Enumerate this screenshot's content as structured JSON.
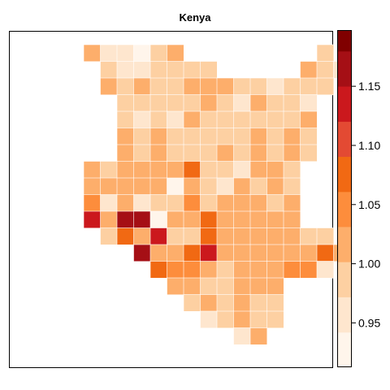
{
  "map": {
    "title": "Kenya"
  },
  "colorbar": {
    "min": 0.9125,
    "max": 1.1975,
    "breaks": [
      0.9125,
      0.9421,
      0.9719,
      1.0016,
      1.0313,
      1.0609,
      1.0906,
      1.1203,
      1.15,
      1.1797,
      1.1975
    ],
    "colors": [
      "#FFF5EB",
      "#FEE6CE",
      "#FDD0A2",
      "#FDAE6B",
      "#FD8D3C",
      "#F16913",
      "#E34A33",
      "#CB181D",
      "#A50F15",
      "#800000",
      "#67000D"
    ],
    "ticks": [
      {
        "value": 0.95,
        "label": "0.95"
      },
      {
        "value": 1.0,
        "label": "1.00"
      },
      {
        "value": 1.05,
        "label": "1.05"
      },
      {
        "value": 1.1,
        "label": "1.10"
      },
      {
        "value": 1.15,
        "label": "1.15"
      }
    ]
  },
  "chart_data": {
    "type": "heatmap",
    "title": "Kenya",
    "value_range": [
      0.9125,
      1.1975
    ],
    "legend_placement": "right",
    "grid_rows": [
      [
        null,
        null,
        1.01,
        0.96,
        0.96,
        0.93,
        0.99,
        1.01,
        null,
        null,
        null,
        null,
        null,
        null,
        null,
        null,
        0.98,
        null
      ],
      [
        null,
        null,
        null,
        0.98,
        0.97,
        0.97,
        0.99,
        1.0,
        1.0,
        1.0,
        null,
        null,
        null,
        null,
        null,
        1.01,
        0.99,
        0.96
      ],
      [
        null,
        null,
        null,
        1.01,
        0.99,
        1.01,
        0.99,
        0.99,
        1.01,
        1.01,
        1.01,
        0.99,
        0.99,
        0.97,
        0.98,
        1.0,
        0.99,
        null
      ],
      [
        null,
        null,
        null,
        null,
        0.99,
        0.99,
        0.99,
        0.99,
        1.0,
        1.01,
        0.99,
        0.97,
        1.01,
        0.99,
        1.0,
        0.97,
        null,
        null
      ],
      [
        null,
        null,
        null,
        null,
        0.99,
        0.96,
        1.0,
        0.95,
        1.03,
        1.0,
        0.99,
        0.99,
        1.0,
        1.0,
        0.99,
        1.01,
        null,
        null
      ],
      [
        null,
        null,
        null,
        null,
        1.01,
        0.99,
        1.01,
        0.99,
        0.99,
        0.99,
        0.98,
        0.99,
        1.01,
        1.0,
        1.01,
        1.0,
        null,
        null
      ],
      [
        null,
        null,
        null,
        null,
        1.01,
        0.99,
        1.01,
        0.99,
        0.99,
        0.99,
        1.01,
        1.0,
        1.01,
        1.0,
        1.01,
        0.99,
        null,
        null
      ],
      [
        null,
        null,
        1.01,
        0.99,
        1.01,
        1.01,
        1.03,
        1.03,
        1.08,
        1.0,
        0.99,
        0.96,
        1.03,
        1.03,
        0.99,
        null,
        null,
        null
      ],
      [
        null,
        null,
        1.01,
        1.01,
        1.03,
        1.03,
        1.03,
        0.93,
        1.01,
        1.0,
        0.97,
        1.03,
        1.0,
        1.01,
        1.0,
        null,
        null,
        null
      ],
      [
        null,
        null,
        1.05,
        0.97,
        1.01,
        0.97,
        0.99,
        0.99,
        1.05,
        1.0,
        1.01,
        1.03,
        1.03,
        0.99,
        1.01,
        null,
        null,
        null
      ],
      [
        null,
        null,
        1.14,
        1.03,
        1.17,
        1.16,
        0.93,
        1.03,
        1.03,
        1.08,
        1.01,
        1.01,
        1.03,
        1.01,
        1.03,
        null,
        null,
        null
      ],
      [
        null,
        null,
        null,
        0.99,
        1.09,
        1.03,
        1.14,
        0.99,
        0.99,
        1.08,
        1.01,
        1.01,
        1.03,
        1.01,
        1.03,
        0.99,
        0.99,
        null
      ],
      [
        null,
        null,
        null,
        null,
        null,
        1.16,
        1.01,
        1.03,
        1.08,
        1.14,
        1.03,
        1.01,
        1.03,
        1.03,
        1.01,
        1.01,
        1.09,
        1.03
      ],
      [
        null,
        null,
        null,
        null,
        null,
        null,
        1.09,
        1.06,
        1.05,
        1.01,
        0.99,
        1.01,
        1.03,
        1.01,
        1.05,
        1.05,
        0.96,
        null
      ],
      [
        null,
        null,
        null,
        null,
        null,
        null,
        null,
        1.03,
        1.01,
        0.99,
        0.99,
        1.03,
        1.01,
        1.01,
        null,
        null,
        null,
        null
      ],
      [
        null,
        null,
        null,
        null,
        null,
        null,
        null,
        null,
        0.99,
        1.01,
        0.99,
        1.01,
        0.99,
        0.99,
        null,
        null,
        null,
        null
      ],
      [
        null,
        null,
        null,
        null,
        null,
        null,
        null,
        null,
        null,
        0.97,
        0.99,
        1.01,
        0.99,
        0.99,
        null,
        null,
        null,
        null
      ],
      [
        null,
        null,
        null,
        null,
        null,
        null,
        null,
        null,
        null,
        null,
        null,
        0.97,
        1.01,
        null,
        null,
        null,
        null,
        null
      ]
    ]
  }
}
